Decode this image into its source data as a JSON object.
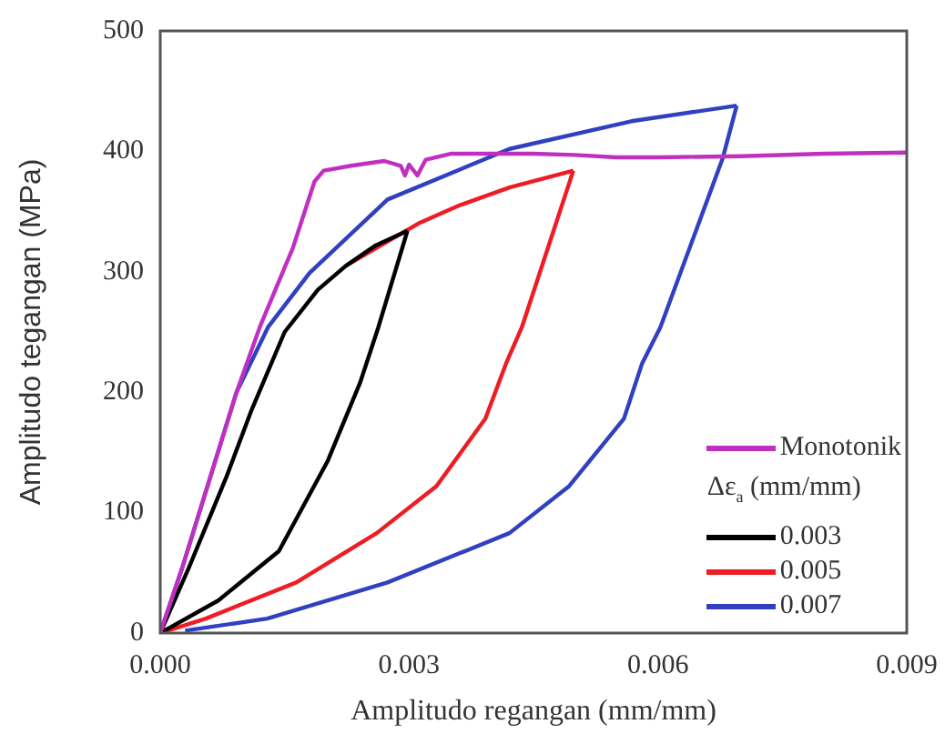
{
  "chart_data": {
    "type": "line",
    "xlabel": "Amplitudo regangan (mm/mm)",
    "ylabel": "Amplitudo tegangan (MPa)",
    "legend_title": "Δε$_{a}$ (mm/mm)",
    "xlim": [
      0,
      0.009
    ],
    "xticks": [
      {
        "value": 0,
        "label": "0.000"
      },
      {
        "value": 0.003,
        "label": "0.003"
      },
      {
        "value": 0.006,
        "label": "0.006"
      },
      {
        "value": 0.009,
        "label": "0.009"
      }
    ],
    "ylim": [
      0,
      500
    ],
    "yticks": [
      0,
      100,
      200,
      300,
      400,
      500
    ],
    "grid": false,
    "legend": "bottom right",
    "marker": "none",
    "line_style": "solid",
    "series": [
      {
        "name": "Monotonik",
        "color": "#c030c0",
        "x": [
          0,
          0.00026,
          0.00092,
          0.0012,
          0.0016,
          0.00186,
          0.00197,
          0.0023,
          0.0027,
          0.0029,
          0.00295,
          0.003,
          0.0031,
          0.0032,
          0.0035,
          0.0045,
          0.005,
          0.0055,
          0.006,
          0.007,
          0.008,
          0.009
        ],
        "values": [
          0,
          53,
          200,
          254,
          320,
          375,
          384,
          388,
          392,
          388,
          380,
          389,
          380,
          393,
          398,
          398,
          397,
          395,
          395,
          396,
          398,
          399
        ]
      },
      {
        "name": "0.003",
        "color": "#000000",
        "x": [
          0,
          0.00035,
          0.0008,
          0.0011,
          0.0015,
          0.0019,
          0.00224,
          0.0026,
          0.00298
        ],
        "values": [
          0,
          55,
          130,
          185,
          250,
          285,
          305,
          322,
          334
        ]
      },
      {
        "color": "#000000",
        "x": [
          0,
          0.0007,
          0.00143,
          0.00202,
          0.00241,
          0.00263,
          0.00298
        ],
        "values": [
          0,
          27,
          68,
          143,
          208,
          254,
          334
        ]
      },
      {
        "name": "0.005",
        "color": "#ee1c24",
        "x": [
          0.00224,
          0.00311,
          0.0036,
          0.00421,
          0.00498
        ],
        "values": [
          305,
          340,
          355,
          370,
          384
        ]
      },
      {
        "color": "#ee1c24",
        "x": [
          0,
          0.00055,
          0.00164,
          0.00261,
          0.00333,
          0.00392,
          0.00417,
          0.00436,
          0.00498
        ],
        "values": [
          0,
          12,
          42,
          83,
          122,
          178,
          224,
          254,
          384
        ]
      },
      {
        "name": "0.007",
        "color": "#3040c0",
        "x": [
          0,
          0.00026,
          0.00092,
          0.0013,
          0.0018,
          0.00274,
          0.00421,
          0.00568,
          0.00695
        ],
        "values": [
          0,
          53,
          200,
          254,
          299,
          360,
          402,
          425,
          438
        ]
      },
      {
        "color": "#3040c0",
        "x": [
          0.0003,
          0.00129,
          0.00274,
          0.00421,
          0.00493,
          0.00559,
          0.00581,
          0.00603,
          0.00678,
          0.00695
        ],
        "values": [
          2,
          12,
          42,
          83,
          122,
          178,
          224,
          254,
          394,
          438
        ]
      }
    ]
  }
}
